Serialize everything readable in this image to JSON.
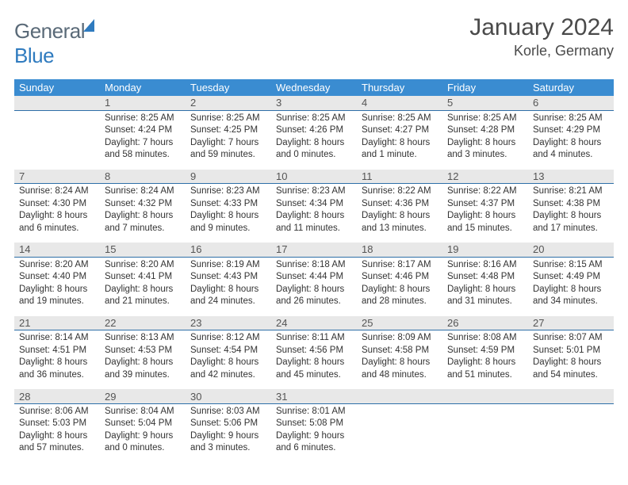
{
  "logo": {
    "text_general": "General",
    "text_blue": "Blue"
  },
  "header": {
    "month_title": "January 2024",
    "location": "Korle, Germany"
  },
  "colors": {
    "header_bg": "#3a8cd1",
    "date_row_bg": "#e8e8e8",
    "date_row_border": "#2e6fa8",
    "text_primary": "#333333",
    "text_muted": "#555555",
    "logo_gray": "#5a6a78",
    "logo_blue": "#2f7bbf"
  },
  "calendar": {
    "days_of_week": [
      "Sunday",
      "Monday",
      "Tuesday",
      "Wednesday",
      "Thursday",
      "Friday",
      "Saturday"
    ],
    "weeks": [
      {
        "dates": [
          "",
          "1",
          "2",
          "3",
          "4",
          "5",
          "6"
        ],
        "cells": [
          null,
          {
            "sunrise": "Sunrise: 8:25 AM",
            "sunset": "Sunset: 4:24 PM",
            "daylight": "Daylight: 7 hours and 58 minutes."
          },
          {
            "sunrise": "Sunrise: 8:25 AM",
            "sunset": "Sunset: 4:25 PM",
            "daylight": "Daylight: 7 hours and 59 minutes."
          },
          {
            "sunrise": "Sunrise: 8:25 AM",
            "sunset": "Sunset: 4:26 PM",
            "daylight": "Daylight: 8 hours and 0 minutes."
          },
          {
            "sunrise": "Sunrise: 8:25 AM",
            "sunset": "Sunset: 4:27 PM",
            "daylight": "Daylight: 8 hours and 1 minute."
          },
          {
            "sunrise": "Sunrise: 8:25 AM",
            "sunset": "Sunset: 4:28 PM",
            "daylight": "Daylight: 8 hours and 3 minutes."
          },
          {
            "sunrise": "Sunrise: 8:25 AM",
            "sunset": "Sunset: 4:29 PM",
            "daylight": "Daylight: 8 hours and 4 minutes."
          }
        ]
      },
      {
        "dates": [
          "7",
          "8",
          "9",
          "10",
          "11",
          "12",
          "13"
        ],
        "cells": [
          {
            "sunrise": "Sunrise: 8:24 AM",
            "sunset": "Sunset: 4:30 PM",
            "daylight": "Daylight: 8 hours and 6 minutes."
          },
          {
            "sunrise": "Sunrise: 8:24 AM",
            "sunset": "Sunset: 4:32 PM",
            "daylight": "Daylight: 8 hours and 7 minutes."
          },
          {
            "sunrise": "Sunrise: 8:23 AM",
            "sunset": "Sunset: 4:33 PM",
            "daylight": "Daylight: 8 hours and 9 minutes."
          },
          {
            "sunrise": "Sunrise: 8:23 AM",
            "sunset": "Sunset: 4:34 PM",
            "daylight": "Daylight: 8 hours and 11 minutes."
          },
          {
            "sunrise": "Sunrise: 8:22 AM",
            "sunset": "Sunset: 4:36 PM",
            "daylight": "Daylight: 8 hours and 13 minutes."
          },
          {
            "sunrise": "Sunrise: 8:22 AM",
            "sunset": "Sunset: 4:37 PM",
            "daylight": "Daylight: 8 hours and 15 minutes."
          },
          {
            "sunrise": "Sunrise: 8:21 AM",
            "sunset": "Sunset: 4:38 PM",
            "daylight": "Daylight: 8 hours and 17 minutes."
          }
        ]
      },
      {
        "dates": [
          "14",
          "15",
          "16",
          "17",
          "18",
          "19",
          "20"
        ],
        "cells": [
          {
            "sunrise": "Sunrise: 8:20 AM",
            "sunset": "Sunset: 4:40 PM",
            "daylight": "Daylight: 8 hours and 19 minutes."
          },
          {
            "sunrise": "Sunrise: 8:20 AM",
            "sunset": "Sunset: 4:41 PM",
            "daylight": "Daylight: 8 hours and 21 minutes."
          },
          {
            "sunrise": "Sunrise: 8:19 AM",
            "sunset": "Sunset: 4:43 PM",
            "daylight": "Daylight: 8 hours and 24 minutes."
          },
          {
            "sunrise": "Sunrise: 8:18 AM",
            "sunset": "Sunset: 4:44 PM",
            "daylight": "Daylight: 8 hours and 26 minutes."
          },
          {
            "sunrise": "Sunrise: 8:17 AM",
            "sunset": "Sunset: 4:46 PM",
            "daylight": "Daylight: 8 hours and 28 minutes."
          },
          {
            "sunrise": "Sunrise: 8:16 AM",
            "sunset": "Sunset: 4:48 PM",
            "daylight": "Daylight: 8 hours and 31 minutes."
          },
          {
            "sunrise": "Sunrise: 8:15 AM",
            "sunset": "Sunset: 4:49 PM",
            "daylight": "Daylight: 8 hours and 34 minutes."
          }
        ]
      },
      {
        "dates": [
          "21",
          "22",
          "23",
          "24",
          "25",
          "26",
          "27"
        ],
        "cells": [
          {
            "sunrise": "Sunrise: 8:14 AM",
            "sunset": "Sunset: 4:51 PM",
            "daylight": "Daylight: 8 hours and 36 minutes."
          },
          {
            "sunrise": "Sunrise: 8:13 AM",
            "sunset": "Sunset: 4:53 PM",
            "daylight": "Daylight: 8 hours and 39 minutes."
          },
          {
            "sunrise": "Sunrise: 8:12 AM",
            "sunset": "Sunset: 4:54 PM",
            "daylight": "Daylight: 8 hours and 42 minutes."
          },
          {
            "sunrise": "Sunrise: 8:11 AM",
            "sunset": "Sunset: 4:56 PM",
            "daylight": "Daylight: 8 hours and 45 minutes."
          },
          {
            "sunrise": "Sunrise: 8:09 AM",
            "sunset": "Sunset: 4:58 PM",
            "daylight": "Daylight: 8 hours and 48 minutes."
          },
          {
            "sunrise": "Sunrise: 8:08 AM",
            "sunset": "Sunset: 4:59 PM",
            "daylight": "Daylight: 8 hours and 51 minutes."
          },
          {
            "sunrise": "Sunrise: 8:07 AM",
            "sunset": "Sunset: 5:01 PM",
            "daylight": "Daylight: 8 hours and 54 minutes."
          }
        ]
      },
      {
        "dates": [
          "28",
          "29",
          "30",
          "31",
          "",
          "",
          ""
        ],
        "cells": [
          {
            "sunrise": "Sunrise: 8:06 AM",
            "sunset": "Sunset: 5:03 PM",
            "daylight": "Daylight: 8 hours and 57 minutes."
          },
          {
            "sunrise": "Sunrise: 8:04 AM",
            "sunset": "Sunset: 5:04 PM",
            "daylight": "Daylight: 9 hours and 0 minutes."
          },
          {
            "sunrise": "Sunrise: 8:03 AM",
            "sunset": "Sunset: 5:06 PM",
            "daylight": "Daylight: 9 hours and 3 minutes."
          },
          {
            "sunrise": "Sunrise: 8:01 AM",
            "sunset": "Sunset: 5:08 PM",
            "daylight": "Daylight: 9 hours and 6 minutes."
          },
          null,
          null,
          null
        ]
      }
    ]
  }
}
